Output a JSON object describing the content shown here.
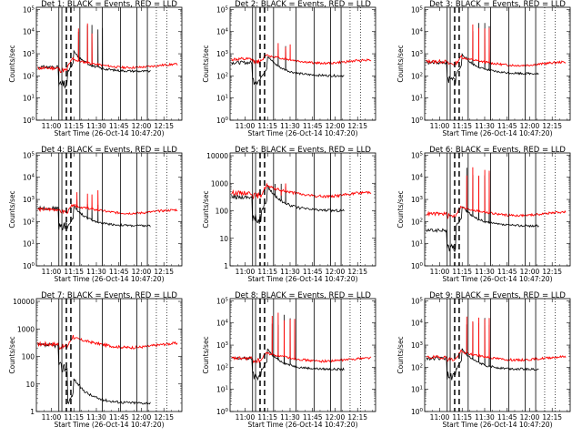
{
  "figure": {
    "x_tick_labels": [
      "11:00",
      "11:15",
      "11:30",
      "11:45",
      "12:00",
      "12:15"
    ],
    "x_tick_values_min": [
      0,
      15,
      30,
      45,
      60,
      75
    ],
    "xlabel": "Start Time (26-Oct-14 10:47:20)",
    "ylabel": "Counts/sec",
    "xlim_min": [
      -10,
      87
    ],
    "log_y": true,
    "series_colors": {
      "events": "#000000",
      "lld": "#ff0000"
    },
    "markers": {
      "solid_vertical_lines_min": [
        5,
        7,
        19,
        34,
        46,
        57,
        64
      ],
      "dashed_vertical_lines_min": [
        10,
        13
      ],
      "dotted_vertical_lines_min": [
        70,
        77
      ]
    }
  },
  "chart_data": [
    {
      "type": "line",
      "title": "Det 1: BLACK = Events, RED = LLD",
      "y_tick_labels": [
        "10^0",
        "10^1",
        "10^2",
        "10^3",
        "10^4",
        "10^5"
      ],
      "ylim_exp": [
        0,
        5.1
      ],
      "events": {
        "base": 2.2,
        "pre": 2.4,
        "spikes": [
          18,
          24,
          27,
          31,
          34
        ],
        "spike_top": 4.4
      },
      "lld": {
        "base": 2.45,
        "pre": 2.35,
        "spikes": [
          18,
          24,
          27
        ],
        "spike_top": 4.4
      }
    },
    {
      "type": "line",
      "title": "Det 2: BLACK = Events, RED = LLD",
      "y_tick_labels": [
        "10^0",
        "10^1",
        "10^2",
        "10^3",
        "10^4",
        "10^5"
      ],
      "ylim_exp": [
        0,
        5.1
      ],
      "events": {
        "base": 2.0,
        "pre": 2.6,
        "spikes": [
          22,
          27
        ],
        "spike_top": 3.4
      },
      "lld": {
        "base": 2.65,
        "pre": 2.75,
        "spikes": [
          22,
          27,
          30
        ],
        "spike_top": 3.5
      }
    },
    {
      "type": "line",
      "title": "Det 3: BLACK = Events, RED = LLD",
      "y_tick_labels": [
        "10^0",
        "10^1",
        "10^2",
        "10^3",
        "10^4",
        "10^5"
      ],
      "ylim_exp": [
        0,
        5.1
      ],
      "events": {
        "base": 2.1,
        "pre": 2.6,
        "spikes": [
          22,
          26,
          30,
          33
        ],
        "spike_top": 4.4
      },
      "lld": {
        "base": 2.55,
        "pre": 2.65,
        "spikes": [
          22,
          26,
          30,
          33
        ],
        "spike_top": 4.5
      }
    },
    {
      "type": "line",
      "title": "Det 4: BLACK = Events, RED = LLD",
      "y_tick_labels": [
        "10^0",
        "10^1",
        "10^2",
        "10^3",
        "10^4",
        "10^5"
      ],
      "ylim_exp": [
        0,
        5.1
      ],
      "events": {
        "base": 1.8,
        "pre": 2.6,
        "spikes": [
          17,
          24,
          27,
          31
        ],
        "spike_top": 3.2
      },
      "lld": {
        "base": 2.45,
        "pre": 2.55,
        "spikes": [
          17,
          24,
          27,
          31
        ],
        "spike_top": 3.6
      }
    },
    {
      "type": "line",
      "title": "Det 5: BLACK = Events, RED = LLD",
      "y_tick_labels": [
        "1",
        "10",
        "100",
        "1000",
        "10000"
      ],
      "ylim_exp": [
        0,
        4.1
      ],
      "events": {
        "base": 2.0,
        "pre": 2.5,
        "spikes": [
          20,
          24,
          27
        ],
        "spike_top": 3.0
      },
      "lld": {
        "base": 2.6,
        "pre": 2.65,
        "spikes": [
          20,
          24,
          27
        ],
        "spike_top": 3.0
      }
    },
    {
      "type": "line",
      "title": "Det 6: BLACK = Events, RED = LLD",
      "y_tick_labels": [
        "10^0",
        "10^1",
        "10^2",
        "10^3",
        "10^4",
        "10^5"
      ],
      "ylim_exp": [
        0,
        5.1
      ],
      "events": {
        "base": 1.8,
        "pre": 1.6,
        "spikes": [
          18,
          22,
          26,
          30,
          33
        ],
        "spike_top": 4.5
      },
      "lld": {
        "base": 2.35,
        "pre": 2.35,
        "spikes": [
          18,
          22,
          26,
          30,
          33
        ],
        "spike_top": 4.5
      }
    },
    {
      "type": "line",
      "title": "Det 7: BLACK = Events, RED = LLD",
      "y_tick_labels": [
        "1",
        "10",
        "100",
        "1000",
        "10000"
      ],
      "ylim_exp": [
        0,
        4.1
      ],
      "events": {
        "base": 0.3,
        "pre": 2.4,
        "spikes": [],
        "spike_top": 2.0
      },
      "lld": {
        "base": 2.4,
        "pre": 2.45,
        "spikes": [],
        "spike_top": 2.5
      }
    },
    {
      "type": "line",
      "title": "Det 8: BLACK = Events, RED = LLD",
      "y_tick_labels": [
        "10^0",
        "10^1",
        "10^2",
        "10^3",
        "10^4",
        "10^5"
      ],
      "ylim_exp": [
        0,
        5.1
      ],
      "events": {
        "base": 1.9,
        "pre": 2.4,
        "spikes": [
          18,
          22,
          26,
          30
        ],
        "spike_top": 4.4
      },
      "lld": {
        "base": 2.35,
        "pre": 2.4,
        "spikes": [
          18,
          22,
          26,
          30,
          33
        ],
        "spike_top": 4.6
      }
    },
    {
      "type": "line",
      "title": "Det 9: BLACK = Events, RED = LLD",
      "y_tick_labels": [
        "10^0",
        "10^1",
        "10^2",
        "10^3",
        "10^4",
        "10^5"
      ],
      "ylim_exp": [
        0,
        5.1
      ],
      "events": {
        "base": 1.9,
        "pre": 2.4,
        "spikes": [
          18,
          22,
          26,
          30,
          33
        ],
        "spike_top": 4.3
      },
      "lld": {
        "base": 2.4,
        "pre": 2.45,
        "spikes": [
          18,
          22,
          26,
          30,
          33
        ],
        "spike_top": 4.5
      }
    }
  ]
}
